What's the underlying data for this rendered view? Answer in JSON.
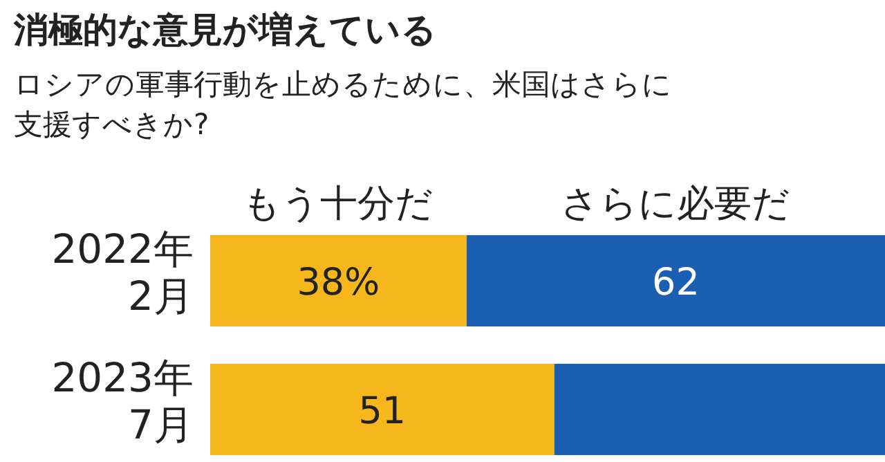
{
  "chart_data": {
    "type": "bar",
    "orientation": "horizontal",
    "stacked": true,
    "title": "消極的な意見が増えている",
    "subtitle": "ロシアの軍事行動を止めるために、米国はさらに支援すべきか?",
    "categories": [
      "2022年\n2月",
      "2023年\n7月"
    ],
    "series": [
      {
        "name": "もう十分だ",
        "color": "#f5b71c",
        "values": [
          38,
          51
        ],
        "value_labels": [
          "38%",
          "51"
        ]
      },
      {
        "name": "さらに必要だ",
        "color": "#1b5fb3",
        "values": [
          62,
          49
        ],
        "value_labels": [
          "62",
          null
        ]
      }
    ],
    "xlim": [
      0,
      100
    ],
    "tick_labels": false,
    "legend": "top"
  }
}
